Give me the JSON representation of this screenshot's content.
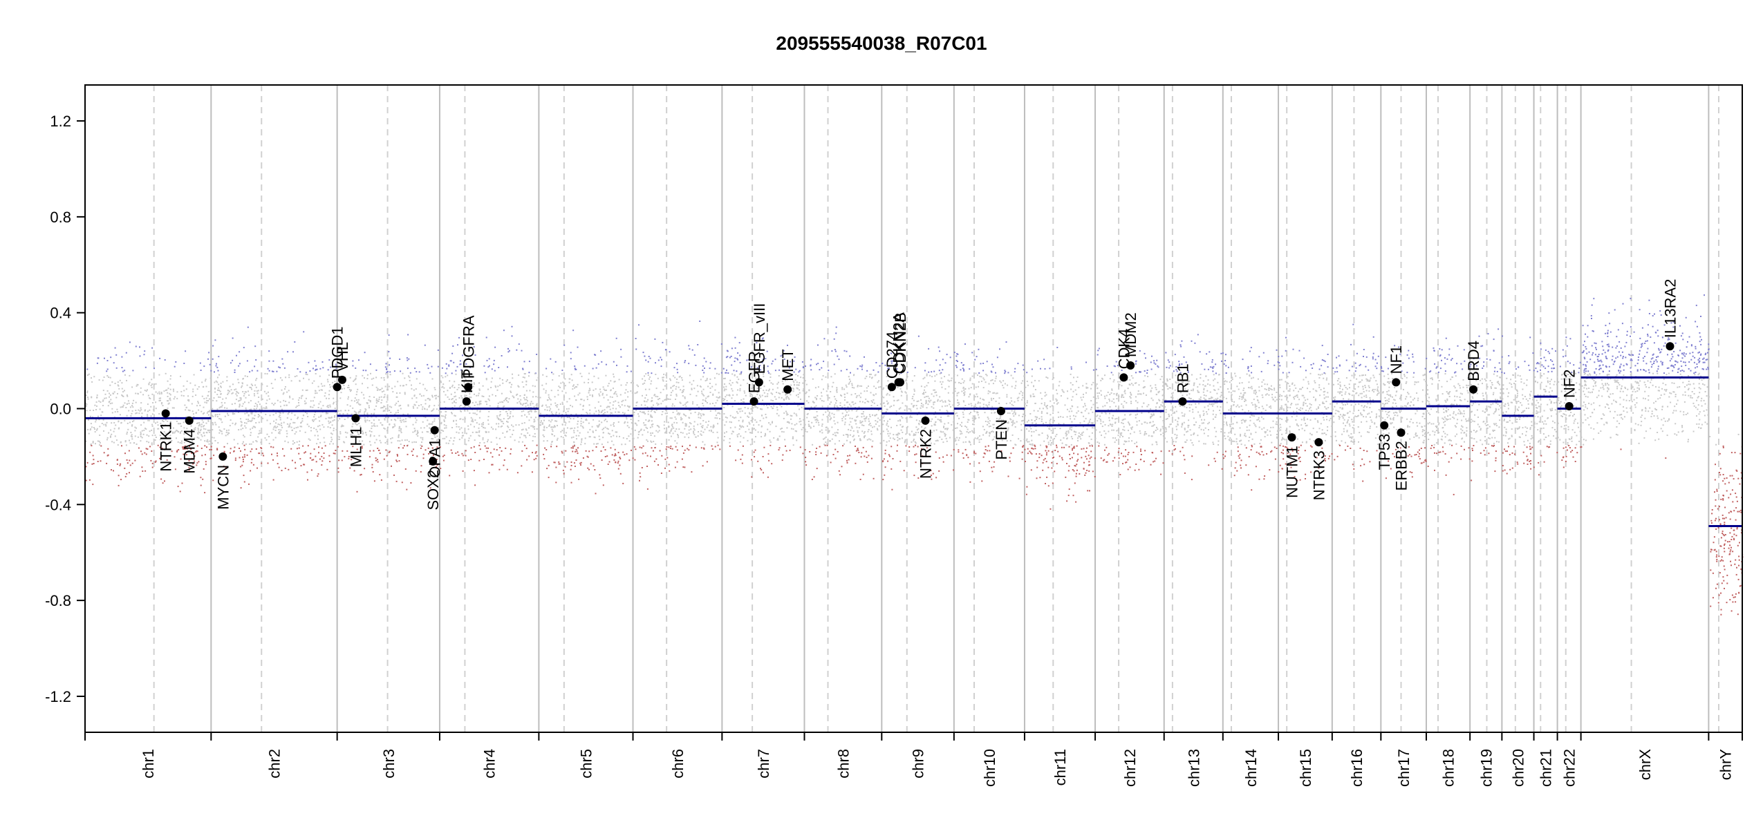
{
  "chart_data": {
    "type": "scatter",
    "title": "209555540038_R07C01",
    "xlabel": "",
    "ylabel": "",
    "ylim": [
      -1.35,
      1.35
    ],
    "y_ticks": [
      "1.2",
      "0.8",
      "0.4",
      "0.0",
      "-0.4",
      "-0.8",
      "-1.2"
    ],
    "y_tick_values": [
      1.2,
      0.8,
      0.4,
      0.0,
      -0.4,
      -0.8,
      -1.2
    ],
    "grid": "vertical lines at chromosome boundaries (solid) and centromeres (dashed)",
    "colors": {
      "segment": "#00008b",
      "gain_points": "#7f7fd0",
      "loss_points": "#c06060",
      "neutral_points": "#c8c8c8",
      "gene_marker": "#000000",
      "boundary": "#bdbdbd",
      "centromere": "#d0d0d0"
    },
    "chromosomes": [
      {
        "name": "chr1",
        "start": 0.0,
        "end": 7.5,
        "centromere": 4.1,
        "segment": -0.04
      },
      {
        "name": "chr2",
        "start": 7.5,
        "end": 15.0,
        "centromere": 10.5,
        "segment": -0.01
      },
      {
        "name": "chr3",
        "start": 15.0,
        "end": 21.1,
        "centromere": 18.0,
        "segment": -0.03
      },
      {
        "name": "chr4",
        "start": 21.1,
        "end": 27.0,
        "centromere": 22.6,
        "segment": 0.0
      },
      {
        "name": "chr5",
        "start": 27.0,
        "end": 32.6,
        "centromere": 28.5,
        "segment": -0.03
      },
      {
        "name": "chr6",
        "start": 32.6,
        "end": 37.9,
        "centromere": 34.6,
        "segment": 0.0
      },
      {
        "name": "chr7",
        "start": 37.9,
        "end": 42.8,
        "centromere": 39.7,
        "segment": 0.02
      },
      {
        "name": "chr8",
        "start": 42.8,
        "end": 47.4,
        "centromere": 44.2,
        "segment": 0.0
      },
      {
        "name": "chr9",
        "start": 47.4,
        "end": 51.7,
        "centromere": 48.9,
        "segment": -0.02
      },
      {
        "name": "chr10",
        "start": 51.7,
        "end": 55.9,
        "centromere": 52.9,
        "segment": 0.0
      },
      {
        "name": "chr11",
        "start": 55.9,
        "end": 60.1,
        "centromere": 57.6,
        "segment": -0.07
      },
      {
        "name": "chr12",
        "start": 60.1,
        "end": 64.2,
        "centromere": 61.5,
        "segment": -0.01
      },
      {
        "name": "chr13",
        "start": 64.2,
        "end": 67.7,
        "centromere": 64.7,
        "segment": 0.03
      },
      {
        "name": "chr14",
        "start": 67.7,
        "end": 71.0,
        "centromere": 68.2,
        "segment": -0.02
      },
      {
        "name": "chr15",
        "start": 71.0,
        "end": 74.2,
        "centromere": 71.5,
        "segment": -0.02
      },
      {
        "name": "chr16",
        "start": 74.2,
        "end": 77.1,
        "centromere": 75.5,
        "segment": 0.03
      },
      {
        "name": "chr17",
        "start": 77.1,
        "end": 79.8,
        "centromere": 78.3,
        "segment": 0.0
      },
      {
        "name": "chr18",
        "start": 79.8,
        "end": 82.4,
        "centromere": 80.5,
        "segment": 0.01
      },
      {
        "name": "chr19",
        "start": 82.4,
        "end": 84.3,
        "centromere": 83.4,
        "segment": 0.03
      },
      {
        "name": "chr20",
        "start": 84.3,
        "end": 86.2,
        "centromere": 85.1,
        "segment": -0.03
      },
      {
        "name": "chr21",
        "start": 86.2,
        "end": 87.6,
        "centromere": 86.6,
        "segment": 0.05
      },
      {
        "name": "chr22",
        "start": 87.6,
        "end": 89.0,
        "centromere": 88.1,
        "segment": 0.0
      },
      {
        "name": "chrX",
        "start": 89.0,
        "end": 96.6,
        "centromere": 92.0,
        "segment": 0.13
      },
      {
        "name": "chrY",
        "start": 96.6,
        "end": 98.6,
        "centromere": 97.2,
        "segment": -0.49
      }
    ],
    "genes": [
      {
        "name": "NTRK1",
        "chrom": "chr1",
        "x": 4.8,
        "y": -0.02,
        "label_side": "below"
      },
      {
        "name": "MDM4",
        "chrom": "chr1",
        "x": 6.2,
        "y": -0.05,
        "label_side": "below"
      },
      {
        "name": "MYCN",
        "chrom": "chr2",
        "x": 8.2,
        "y": -0.2,
        "label_side": "below"
      },
      {
        "name": "PDGD1",
        "chrom": "chr3",
        "x": 15.0,
        "y": 0.09,
        "label_side": "above"
      },
      {
        "name": "VHL",
        "chrom": "chr3",
        "x": 15.3,
        "y": 0.12,
        "label_side": "above"
      },
      {
        "name": "MLH1",
        "chrom": "chr3",
        "x": 16.1,
        "y": -0.04,
        "label_side": "below"
      },
      {
        "name": "SOX2",
        "chrom": "chr3",
        "x": 20.7,
        "y": -0.22,
        "label_side": "below"
      },
      {
        "name": "OPA1",
        "chrom": "chr3",
        "x": 20.8,
        "y": -0.09,
        "label_side": "below"
      },
      {
        "name": "PDGFRA",
        "chrom": "chr4",
        "x": 22.8,
        "y": 0.09,
        "label_side": "above"
      },
      {
        "name": "KIT",
        "chrom": "chr4",
        "x": 22.7,
        "y": 0.03,
        "label_side": "above"
      },
      {
        "name": "EGFR_vIII",
        "chrom": "chr7",
        "x": 40.1,
        "y": 0.11,
        "label_side": "above"
      },
      {
        "name": "EGFR",
        "chrom": "chr7",
        "x": 39.8,
        "y": 0.03,
        "label_side": "above"
      },
      {
        "name": "MET",
        "chrom": "chr7",
        "x": 41.8,
        "y": 0.08,
        "label_side": "above"
      },
      {
        "name": "CD274",
        "chrom": "chr9",
        "x": 48.0,
        "y": 0.09,
        "label_side": "above"
      },
      {
        "name": "CDKN2A",
        "chrom": "chr9",
        "x": 48.4,
        "y": 0.11,
        "label_side": "above"
      },
      {
        "name": "CDKN2B",
        "chrom": "chr9",
        "x": 48.5,
        "y": 0.11,
        "label_side": "above"
      },
      {
        "name": "NTRK2",
        "chrom": "chr9",
        "x": 50.0,
        "y": -0.05,
        "label_side": "below"
      },
      {
        "name": "PTEN",
        "chrom": "chr10",
        "x": 54.5,
        "y": -0.01,
        "label_side": "below"
      },
      {
        "name": "CDK4",
        "chrom": "chr12",
        "x": 61.8,
        "y": 0.13,
        "label_side": "above"
      },
      {
        "name": "MDM2",
        "chrom": "chr12",
        "x": 62.2,
        "y": 0.18,
        "label_side": "above"
      },
      {
        "name": "RB1",
        "chrom": "chr13",
        "x": 65.3,
        "y": 0.03,
        "label_side": "above"
      },
      {
        "name": "NUTM1",
        "chrom": "chr15",
        "x": 71.8,
        "y": -0.12,
        "label_side": "below"
      },
      {
        "name": "NTRK3",
        "chrom": "chr15",
        "x": 73.4,
        "y": -0.14,
        "label_side": "below"
      },
      {
        "name": "TP53",
        "chrom": "chr17",
        "x": 77.3,
        "y": -0.07,
        "label_side": "below"
      },
      {
        "name": "NF1",
        "chrom": "chr17",
        "x": 78.0,
        "y": 0.11,
        "label_side": "above"
      },
      {
        "name": "ERBB2",
        "chrom": "chr17",
        "x": 78.3,
        "y": -0.1,
        "label_side": "below"
      },
      {
        "name": "BRD4",
        "chrom": "chr19",
        "x": 82.6,
        "y": 0.08,
        "label_side": "above"
      },
      {
        "name": "NF2",
        "chrom": "chr22",
        "x": 88.3,
        "y": 0.01,
        "label_side": "above"
      },
      {
        "name": "IL13RA2",
        "chrom": "chrX",
        "x": 94.3,
        "y": 0.26,
        "label_side": "above"
      }
    ]
  }
}
